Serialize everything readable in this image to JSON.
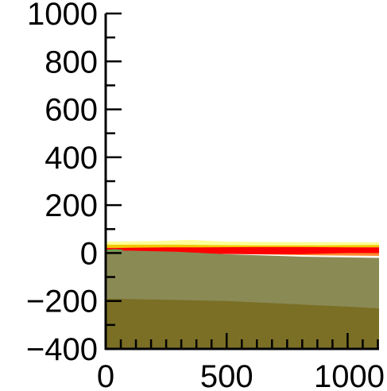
{
  "chart_data": {
    "type": "area",
    "title": "",
    "xlabel": "",
    "ylabel": "",
    "xlim": [
      0,
      1130
    ],
    "ylim": [
      -400,
      1000
    ],
    "x_ticks": [
      0,
      500,
      1000
    ],
    "x_tick_labels": [
      "0",
      "500",
      "1000"
    ],
    "x_minor_step": 62.5,
    "y_ticks": [
      -400,
      -200,
      0,
      200,
      400,
      600,
      800,
      1000
    ],
    "y_tick_labels": [
      "−400",
      "−200",
      "0",
      "200",
      "400",
      "600",
      "800",
      "1000"
    ],
    "y_minor_step": 100,
    "grid": false,
    "legend": "none",
    "series": [
      {
        "color": "#ffff99",
        "x": [
          0,
          200,
          350,
          500,
          800,
          1130
        ],
        "upper": [
          48,
          50,
          55,
          48,
          46,
          45
        ],
        "lower": [
          20,
          22,
          22,
          24,
          25,
          26
        ]
      },
      {
        "color": "#f0c800",
        "x": [
          0,
          300,
          600,
          900,
          1130
        ],
        "upper": [
          35,
          35,
          32,
          32,
          34
        ],
        "lower": [
          18,
          18,
          20,
          22,
          24
        ]
      },
      {
        "color": "#ff8a30",
        "x": [
          0,
          300,
          600,
          900,
          1130
        ],
        "upper": [
          22,
          22,
          20,
          18,
          18
        ],
        "lower": [
          10,
          5,
          -5,
          -10,
          -12
        ]
      },
      {
        "color": "#ff0000",
        "x": [
          0,
          100,
          250,
          400,
          600,
          800,
          1000,
          1130
        ],
        "upper": [
          20,
          22,
          24,
          24,
          25,
          25,
          24,
          24
        ],
        "lower": [
          12,
          8,
          2,
          -3,
          -5,
          -5,
          0,
          0
        ]
      },
      {
        "color": "#4caf50",
        "x": [
          0,
          40,
          70
        ],
        "upper": [
          14,
          16,
          14
        ],
        "lower": [
          6,
          4,
          6
        ]
      },
      {
        "color": "#8a8a55",
        "x": [
          0,
          100,
          300,
          500,
          800,
          1000,
          1130
        ],
        "upper": [
          10,
          10,
          5,
          -5,
          -15,
          -18,
          -20
        ],
        "lower": [
          -190,
          -195,
          -200,
          -205,
          -215,
          -225,
          -230
        ]
      },
      {
        "color": "#7a6f25",
        "x": [
          0,
          500,
          1130
        ],
        "upper": [
          -190,
          -200,
          -230
        ],
        "lower": [
          -400,
          -400,
          -400
        ]
      }
    ]
  }
}
